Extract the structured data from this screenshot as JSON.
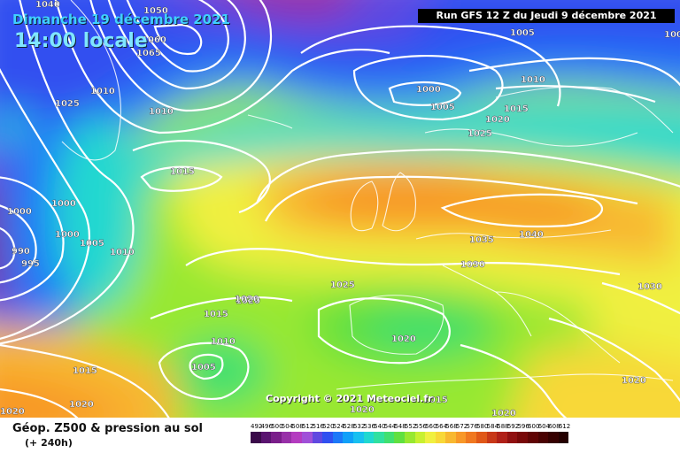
{
  "header": {
    "date": "Dimanche 19 décembre 2021",
    "time": "14:00 locale",
    "run": "Run GFS 12 Z du Jeudi 9 décembre 2021"
  },
  "copyright": "Copyright © 2021 Meteociel.fr",
  "footer": {
    "title": "Géop. Z500 & pression au sol",
    "subtitle": "(+ 240h)"
  },
  "isobar_labels": [
    "1040",
    "1050",
    "1060",
    "1065",
    "1005",
    "1000",
    "1005",
    "1010",
    "1015",
    "1020",
    "1025",
    "1010",
    "1010",
    "1015",
    "1025",
    "1030",
    "1035",
    "1040",
    "1025",
    "1000",
    "1000",
    "1000",
    "990",
    "995",
    "1005",
    "1010",
    "1015",
    "1020",
    "1015",
    "1010",
    "1005",
    "1020",
    "1030",
    "1020",
    "1015",
    "1020",
    "1020",
    "1020",
    "1020",
    "1020",
    "1000"
  ],
  "scale": {
    "values": [
      "492",
      "496",
      "500",
      "504",
      "508",
      "512",
      "516",
      "520",
      "524",
      "528",
      "532",
      "536",
      "540",
      "544",
      "548",
      "552",
      "556",
      "560",
      "564",
      "568",
      "572",
      "576",
      "580",
      "584",
      "588",
      "592",
      "596",
      "600",
      "604",
      "608",
      "612"
    ],
    "colors": [
      "#3a0a4a",
      "#5a1470",
      "#7a1e8a",
      "#9830a8",
      "#b43cc0",
      "#a050d8",
      "#6048e0",
      "#3050f0",
      "#1c78f8",
      "#10a0f8",
      "#18c0f0",
      "#20d8d0",
      "#30e0a0",
      "#40e070",
      "#60e040",
      "#98e830",
      "#c8f030",
      "#f0f040",
      "#f8d838",
      "#f8b830",
      "#f89828",
      "#f07820",
      "#e05818",
      "#c83818",
      "#b02018",
      "#901010",
      "#780808",
      "#600404",
      "#4a0202",
      "#360000",
      "#240000"
    ]
  }
}
